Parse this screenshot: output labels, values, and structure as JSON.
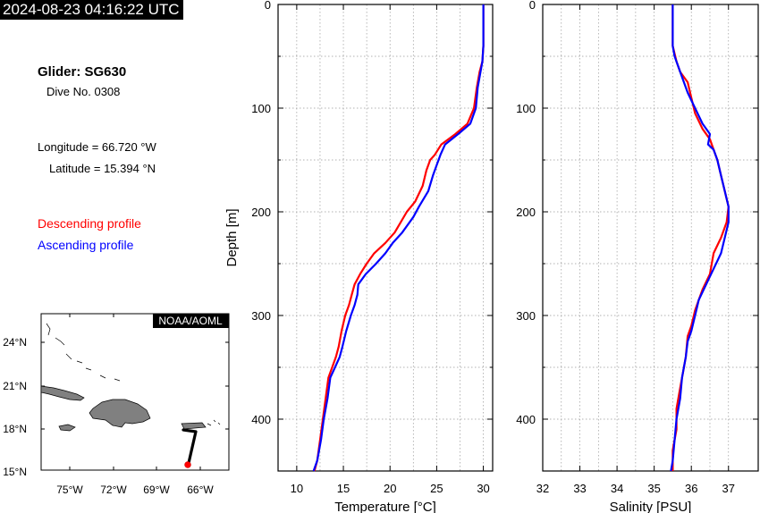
{
  "timestamp": "2024-08-23 04:16:22 UTC",
  "info": {
    "glider": "Glider: SG630",
    "dive": "Dive No. 0308",
    "longitude": "Longitude = 66.720 °W",
    "latitude": "Latitude = 15.394 °N"
  },
  "legend": {
    "descending": "Descending profile",
    "ascending": "Ascending profile",
    "descending_color": "#ff0000",
    "ascending_color": "#0000ff"
  },
  "map": {
    "credit": "NOAA/AOML",
    "lat_labels": [
      "24°N",
      "21°N",
      "18°N",
      "15°N"
    ],
    "lon_labels": [
      "75°W",
      "72°W",
      "69°W",
      "66°W"
    ],
    "land_color": "#808080",
    "track_color": "#000000",
    "marker_color": "#ff0000"
  },
  "chart_data": [
    {
      "type": "line",
      "xlabel": "Temperature [°C]",
      "ylabel": "Depth [m]",
      "xlim": [
        8,
        31
      ],
      "ylim": [
        450,
        0
      ],
      "y_inverted": true,
      "xticks": [
        10,
        15,
        20,
        25,
        30
      ],
      "yticks": [
        0,
        100,
        200,
        300,
        400
      ],
      "grid": true,
      "series": [
        {
          "name": "Descending profile",
          "color": "#ff0000",
          "points": [
            [
              30.0,
              0
            ],
            [
              30.0,
              40
            ],
            [
              29.9,
              55
            ],
            [
              29.6,
              65
            ],
            [
              29.3,
              80
            ],
            [
              29.0,
              100
            ],
            [
              28.3,
              115
            ],
            [
              27.0,
              125
            ],
            [
              25.5,
              135
            ],
            [
              24.8,
              145
            ],
            [
              24.3,
              150
            ],
            [
              23.9,
              160
            ],
            [
              23.5,
              175
            ],
            [
              22.7,
              190
            ],
            [
              21.8,
              200
            ],
            [
              20.5,
              220
            ],
            [
              19.5,
              230
            ],
            [
              18.3,
              240
            ],
            [
              17.5,
              250
            ],
            [
              16.8,
              260
            ],
            [
              16.2,
              270
            ],
            [
              15.9,
              280
            ],
            [
              15.6,
              290
            ],
            [
              15.2,
              300
            ],
            [
              14.8,
              315
            ],
            [
              14.5,
              330
            ],
            [
              14.2,
              340
            ],
            [
              13.8,
              350
            ],
            [
              13.4,
              360
            ],
            [
              13.1,
              380
            ],
            [
              12.8,
              400
            ],
            [
              12.5,
              420
            ],
            [
              12.2,
              440
            ],
            [
              11.9,
              450
            ]
          ]
        },
        {
          "name": "Ascending profile",
          "color": "#0000ff",
          "points": [
            [
              30.0,
              0
            ],
            [
              30.0,
              40
            ],
            [
              29.9,
              55
            ],
            [
              29.7,
              65
            ],
            [
              29.4,
              80
            ],
            [
              29.2,
              100
            ],
            [
              28.6,
              115
            ],
            [
              27.3,
              125
            ],
            [
              25.9,
              135
            ],
            [
              25.4,
              145
            ],
            [
              25.0,
              155
            ],
            [
              24.6,
              165
            ],
            [
              24.1,
              180
            ],
            [
              23.1,
              195
            ],
            [
              22.5,
              205
            ],
            [
              21.3,
              220
            ],
            [
              20.3,
              230
            ],
            [
              19.5,
              240
            ],
            [
              18.5,
              250
            ],
            [
              17.4,
              260
            ],
            [
              16.6,
              270
            ],
            [
              16.5,
              280
            ],
            [
              16.2,
              290
            ],
            [
              15.8,
              300
            ],
            [
              15.3,
              315
            ],
            [
              14.9,
              330
            ],
            [
              14.6,
              340
            ],
            [
              14.1,
              350
            ],
            [
              13.6,
              360
            ],
            [
              13.3,
              380
            ],
            [
              12.9,
              400
            ],
            [
              12.6,
              420
            ],
            [
              12.2,
              440
            ],
            [
              11.8,
              450
            ]
          ]
        }
      ]
    },
    {
      "type": "line",
      "xlabel": "Salinity [PSU]",
      "ylabel": "",
      "xlim": [
        32,
        37.8
      ],
      "ylim": [
        450,
        0
      ],
      "y_inverted": true,
      "xticks": [
        32,
        33,
        34,
        35,
        36,
        37
      ],
      "yticks": [
        0,
        100,
        200,
        300,
        400
      ],
      "grid": true,
      "series": [
        {
          "name": "Descending profile",
          "color": "#ff0000",
          "points": [
            [
              35.5,
              0
            ],
            [
              35.5,
              40
            ],
            [
              35.6,
              55
            ],
            [
              35.7,
              65
            ],
            [
              35.9,
              75
            ],
            [
              36.0,
              90
            ],
            [
              36.1,
              105
            ],
            [
              36.3,
              120
            ],
            [
              36.5,
              130
            ],
            [
              36.6,
              140
            ],
            [
              36.7,
              150
            ],
            [
              36.8,
              165
            ],
            [
              36.9,
              180
            ],
            [
              37.0,
              195
            ],
            [
              36.95,
              210
            ],
            [
              36.8,
              225
            ],
            [
              36.6,
              240
            ],
            [
              36.5,
              260
            ],
            [
              36.3,
              275
            ],
            [
              36.2,
              285
            ],
            [
              36.1,
              295
            ],
            [
              36.0,
              310
            ],
            [
              35.9,
              320
            ],
            [
              35.85,
              340
            ],
            [
              35.8,
              350
            ],
            [
              35.7,
              370
            ],
            [
              35.6,
              390
            ],
            [
              35.6,
              410
            ],
            [
              35.5,
              430
            ],
            [
              35.5,
              450
            ]
          ]
        },
        {
          "name": "Ascending profile",
          "color": "#0000ff",
          "points": [
            [
              35.5,
              0
            ],
            [
              35.5,
              40
            ],
            [
              35.55,
              50
            ],
            [
              35.7,
              65
            ],
            [
              35.8,
              75
            ],
            [
              35.9,
              85
            ],
            [
              36.1,
              100
            ],
            [
              36.3,
              115
            ],
            [
              36.5,
              125
            ],
            [
              36.45,
              135
            ],
            [
              36.6,
              140
            ],
            [
              36.7,
              150
            ],
            [
              36.8,
              165
            ],
            [
              36.9,
              180
            ],
            [
              37.0,
              195
            ],
            [
              37.0,
              210
            ],
            [
              36.9,
              225
            ],
            [
              36.8,
              240
            ],
            [
              36.6,
              255
            ],
            [
              36.4,
              270
            ],
            [
              36.2,
              285
            ],
            [
              36.1,
              300
            ],
            [
              36.0,
              315
            ],
            [
              35.9,
              325
            ],
            [
              35.85,
              340
            ],
            [
              35.75,
              360
            ],
            [
              35.7,
              380
            ],
            [
              35.6,
              400
            ],
            [
              35.55,
              420
            ],
            [
              35.5,
              440
            ],
            [
              35.45,
              450
            ]
          ]
        }
      ]
    }
  ]
}
